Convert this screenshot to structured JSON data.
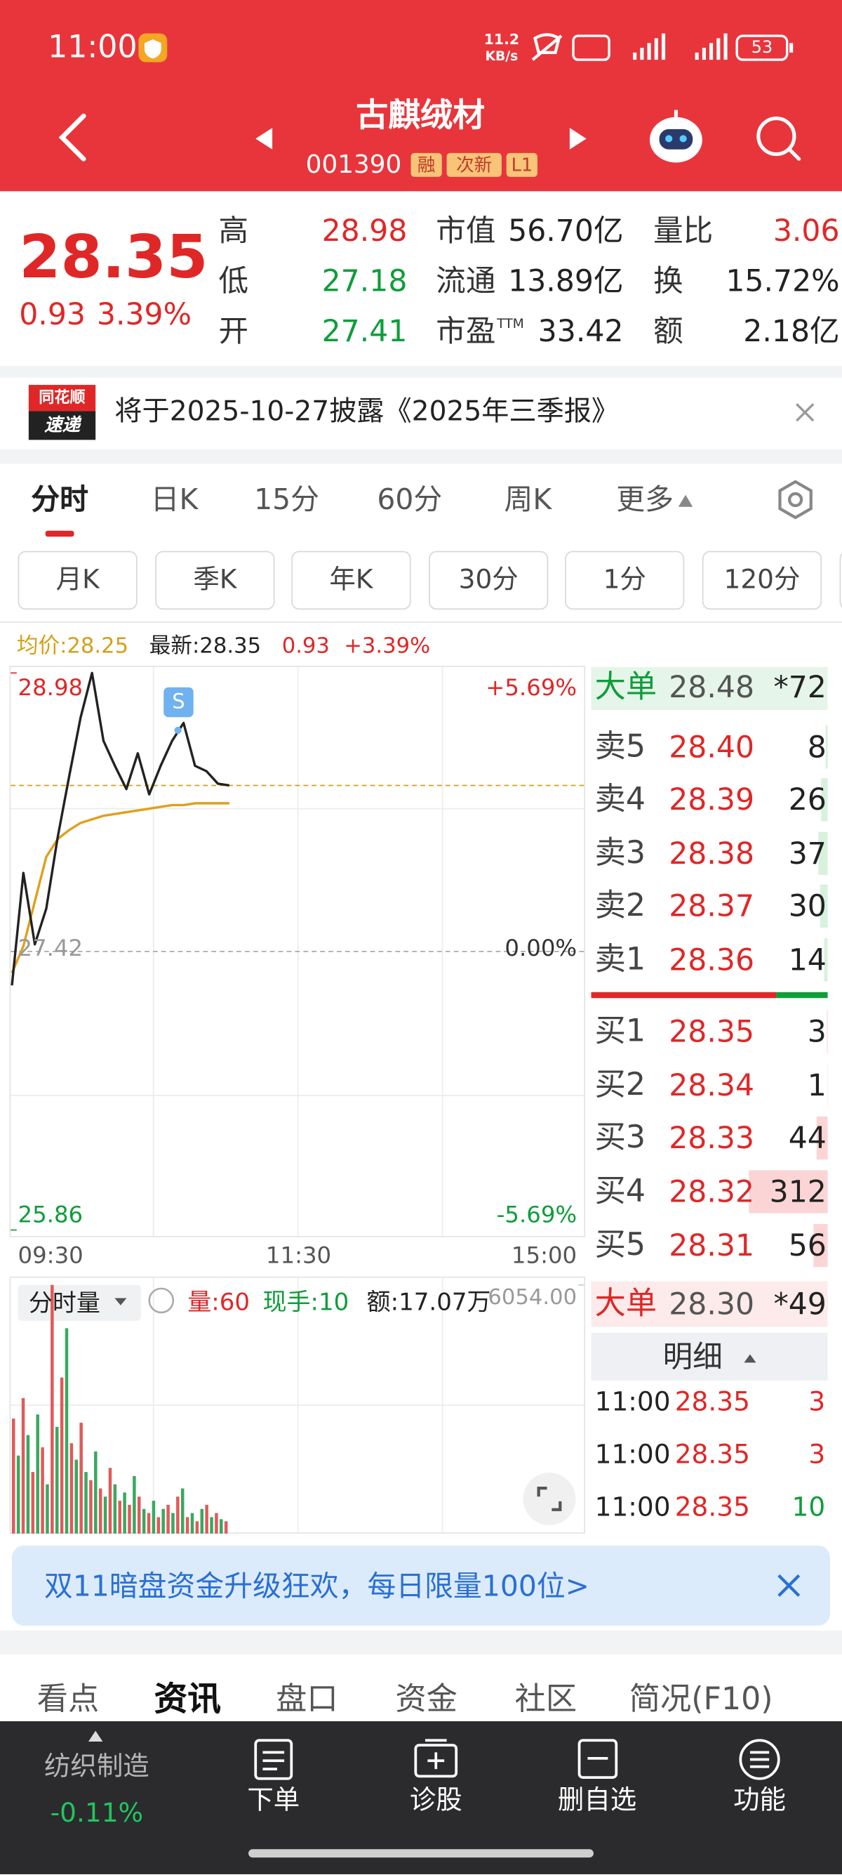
{
  "status": {
    "time": "11:00",
    "speed": "11.2",
    "speed_unit": "KB/s",
    "battery": "53"
  },
  "header": {
    "title": "古麒绒材",
    "code": "001390",
    "tags": [
      "融",
      "次新",
      "L1"
    ]
  },
  "quote": {
    "price": "28.35",
    "change": "0.93",
    "pct": "3.39%",
    "stats": [
      [
        {
          "label": "高",
          "value": "28.98",
          "color": "#e02727"
        },
        {
          "label": "低",
          "value": "27.18",
          "color": "#0f9d3a"
        },
        {
          "label": "开",
          "value": "27.41",
          "color": "#0f9d3a"
        }
      ],
      [
        {
          "label": "市值",
          "value": "56.70亿",
          "color": "#222222"
        },
        {
          "label": "流通",
          "value": "13.89亿",
          "color": "#222222"
        },
        {
          "label": "市盈",
          "sup": "TTM",
          "value": "33.42",
          "color": "#222222"
        }
      ],
      [
        {
          "label": "量比",
          "value": "3.06",
          "color": "#e02727"
        },
        {
          "label": "换",
          "value": "15.72%",
          "color": "#222222"
        },
        {
          "label": "额",
          "value": "2.18亿",
          "color": "#222222"
        }
      ]
    ]
  },
  "notice": {
    "logo": [
      "同花顺",
      "速递"
    ],
    "text": "将于2025-10-27披露《2025年三季报》"
  },
  "tabs": [
    "分时",
    "日K",
    "15分",
    "60分",
    "周K",
    "更多"
  ],
  "subtabs": [
    "月K",
    "季K",
    "年K",
    "30分",
    "1分",
    "120分"
  ],
  "info": {
    "avg": "均价:28.25",
    "latest": "最新:28.35",
    "change": "0.93",
    "pct": "+3.39%"
  },
  "intraday": {
    "type": "line",
    "ylim": [
      25.86,
      28.98
    ],
    "yticks": [
      28.98,
      27.42,
      25.86
    ],
    "y2lim": [
      -5.69,
      5.69
    ],
    "y2ticks": [
      {
        "value": 5.69,
        "label": "+5.69%"
      },
      {
        "value": 0,
        "label": "0.00%"
      },
      {
        "value": -5.69,
        "label": "-5.69%"
      }
    ],
    "xticks": [
      "09:30",
      "11:30",
      "15:00"
    ],
    "marker": "S",
    "price": {
      "color": "#222222",
      "values": [
        27.23,
        27.86,
        27.46,
        27.66,
        28.06,
        28.4,
        28.73,
        28.98,
        28.6,
        28.46,
        28.33,
        28.53,
        28.3,
        28.46,
        28.6,
        28.7,
        28.46,
        28.43,
        28.36,
        28.35
      ]
    },
    "avg": {
      "color": "#e0a01c",
      "values": [
        27.3,
        27.45,
        27.7,
        27.95,
        28.05,
        28.1,
        28.14,
        28.16,
        28.18,
        28.19,
        28.2,
        28.21,
        28.22,
        28.23,
        28.24,
        28.24,
        28.25,
        28.25,
        28.25,
        28.25
      ]
    }
  },
  "volume": {
    "title": "分时量",
    "vol": "量:60",
    "hand": "现手:10",
    "amount": "额:17.07万",
    "ylim": [
      0,
      6054
    ],
    "yticks": [
      {
        "value": 6054,
        "label": "6054.00"
      }
    ],
    "colors": [
      "#e05a5a",
      "#3aa860"
    ],
    "values": [
      2800,
      1900,
      3300,
      2400,
      1500,
      2900,
      2100,
      1200,
      6054,
      2600,
      3800,
      5000,
      2200,
      1800,
      2700,
      1500,
      1300,
      2000,
      1100,
      900,
      1600,
      1200,
      800,
      1000,
      700,
      1400,
      900,
      600,
      500,
      800,
      400,
      600,
      700,
      500,
      900,
      1100,
      400,
      500,
      300,
      600,
      700,
      400,
      500,
      350,
      300
    ]
  },
  "orderbook": {
    "big_top": {
      "label": "大单",
      "price": "28.48",
      "count": "*72"
    },
    "asks": [
      {
        "label": "卖5",
        "price": "28.40",
        "volume": 8
      },
      {
        "label": "卖4",
        "price": "28.39",
        "volume": 26
      },
      {
        "label": "卖3",
        "price": "28.38",
        "volume": 37
      },
      {
        "label": "卖2",
        "price": "28.37",
        "volume": 30
      },
      {
        "label": "卖1",
        "price": "28.36",
        "volume": 14
      }
    ],
    "bids": [
      {
        "label": "买1",
        "price": "28.35",
        "volume": 3
      },
      {
        "label": "买2",
        "price": "28.34",
        "volume": 1
      },
      {
        "label": "买3",
        "price": "28.33",
        "volume": 44
      },
      {
        "label": "买4",
        "price": "28.32",
        "volume": 312
      },
      {
        "label": "买5",
        "price": "28.31",
        "volume": 56
      }
    ],
    "big_bottom": {
      "label": "大单",
      "price": "28.30",
      "count": "*49"
    },
    "detail": "明细",
    "trades": [
      {
        "time": "11:00",
        "price": "28.35",
        "volume": 3,
        "color": "#e02727"
      },
      {
        "time": "11:00",
        "price": "28.35",
        "volume": 3,
        "color": "#e02727"
      },
      {
        "time": "11:00",
        "price": "28.35",
        "volume": 10,
        "color": "#0f9d3a"
      }
    ]
  },
  "banner": "双11暗盘资金升级狂欢，每日限量100位>",
  "sections": [
    "看点",
    "资讯",
    "盘口",
    "资金",
    "社区",
    "简况(F10)"
  ],
  "nav": {
    "sector": "纺织制造",
    "sector_change": "-0.11%",
    "buttons": [
      "下单",
      "诊股",
      "删自选",
      "功能"
    ]
  }
}
